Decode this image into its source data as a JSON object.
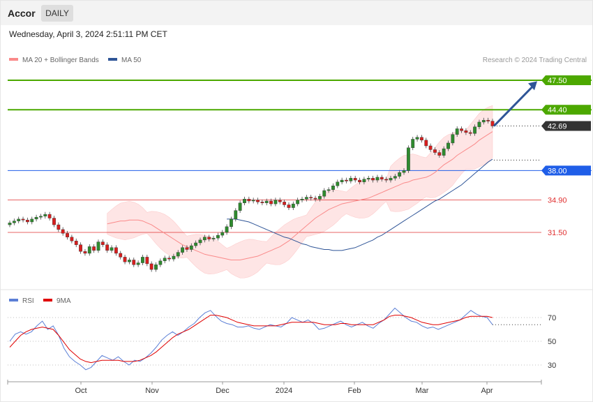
{
  "header": {
    "title": "Accor",
    "period": "DAILY",
    "datetime": "Wednesday, April 3, 2024 2:51:11 PM CET"
  },
  "legend": {
    "ma20": "MA 20 + Bollinger Bands",
    "ma50": "MA 50",
    "rsi": "RSI",
    "rsi_ma": "9MA"
  },
  "credit": "Research © 2024 Trading Central",
  "colors": {
    "bollinger": "#fa8a8a",
    "ma50": "#2f5597",
    "rsi": "#5b7fd6",
    "rsi_ma": "#e00000",
    "target": "#4ca800",
    "support": "#1f5ee8",
    "pivot": "#e03030",
    "price_tag": "#333333",
    "up": "#2e8b2e",
    "down": "#d81e1e"
  },
  "chart_data": [
    {
      "type": "line",
      "name_hint": "price-panel",
      "x_tick_labels": [
        "Oct",
        "Nov",
        "Dec",
        "2024",
        "Feb",
        "Mar",
        "Apr"
      ],
      "price_levels": [
        {
          "label": "47.50",
          "value": 47.5,
          "kind": "target"
        },
        {
          "label": "44.40",
          "value": 44.4,
          "kind": "target"
        },
        {
          "label": "42.69",
          "value": 42.69,
          "kind": "last"
        },
        {
          "label": "38.00",
          "value": 38.0,
          "kind": "support"
        },
        {
          "label": "34.90",
          "value": 34.9,
          "kind": "pivot"
        },
        {
          "label": "31.50",
          "value": 31.5,
          "kind": "pivot"
        }
      ],
      "ylim": [
        25.7,
        48.6
      ],
      "close": [
        32.5,
        32.7,
        32.9,
        32.8,
        32.6,
        32.9,
        33.1,
        33.2,
        33.4,
        33.0,
        32.3,
        31.8,
        31.4,
        31.0,
        30.6,
        30.2,
        29.5,
        29.3,
        30.0,
        29.6,
        30.5,
        30.2,
        29.6,
        29.9,
        29.3,
        28.9,
        28.4,
        28.6,
        28.1,
        28.3,
        28.9,
        28.2,
        27.6,
        28.1,
        28.5,
        28.8,
        28.7,
        29.0,
        29.4,
        29.9,
        29.7,
        30.1,
        30.4,
        30.7,
        31.0,
        30.8,
        30.9,
        31.2,
        31.5,
        32.1,
        32.9,
        33.8,
        34.6,
        35.0,
        34.8,
        34.9,
        34.7,
        34.6,
        34.8,
        34.5,
        34.9,
        34.7,
        34.4,
        34.1,
        34.5,
        34.9,
        35.0,
        35.2,
        35.1,
        35.0,
        35.3,
        35.9,
        36.0,
        36.4,
        36.8,
        37.0,
        36.9,
        37.2,
        37.0,
        36.8,
        37.1,
        37.2,
        37.0,
        37.3,
        37.1,
        37.0,
        37.2,
        37.4,
        37.8,
        38.0,
        40.4,
        41.3,
        41.5,
        41.2,
        40.6,
        40.2,
        39.9,
        39.6,
        40.3,
        40.9,
        41.8,
        42.4,
        42.2,
        42.0,
        41.9,
        42.6,
        43.1,
        43.3,
        43.2,
        42.69
      ],
      "ma20": [
        32.4,
        32.5,
        32.6,
        32.7,
        32.7,
        32.8,
        32.8,
        32.8,
        32.7,
        32.5,
        32.3,
        32.0,
        31.7,
        31.4,
        31.1,
        30.8,
        30.5,
        30.2,
        30.0,
        29.8,
        29.6,
        29.4,
        29.2,
        29.1,
        29.0,
        28.9,
        28.8,
        28.7,
        28.6,
        28.6,
        28.6,
        28.7,
        28.8,
        28.9,
        29.0,
        29.2,
        29.4,
        29.6,
        29.8,
        30.0,
        30.3,
        30.6,
        31.0,
        31.4,
        31.8,
        32.2,
        32.6,
        33.0,
        33.3,
        33.6,
        33.9,
        34.1,
        34.3,
        34.5,
        34.6,
        34.7,
        34.8,
        34.9,
        35.0,
        35.1,
        35.3,
        35.5,
        35.7,
        35.9,
        36.1,
        36.3,
        36.5,
        36.7,
        36.8,
        37.0,
        37.1,
        37.2,
        37.3,
        37.5,
        37.8,
        38.2,
        38.6,
        38.9,
        39.2,
        39.6,
        39.9,
        40.2,
        40.5,
        40.8,
        41.2,
        41.5,
        41.8,
        42.1
      ],
      "ma50": [
        32.9,
        32.9,
        32.9,
        32.8,
        32.7,
        32.6,
        32.4,
        32.2,
        32.0,
        31.8,
        31.6,
        31.4,
        31.2,
        31.0,
        30.9,
        30.7,
        30.5,
        30.3,
        30.2,
        30.0,
        29.9,
        29.8,
        29.7,
        29.7,
        29.6,
        29.6,
        29.6,
        29.7,
        29.8,
        29.9,
        30.1,
        30.3,
        30.5,
        30.7,
        31.0,
        31.2,
        31.5,
        31.8,
        32.1,
        32.4,
        32.7,
        33.0,
        33.3,
        33.6,
        33.9,
        34.2,
        34.5,
        34.8,
        35.0,
        35.3,
        35.6,
        35.9,
        36.2,
        36.5,
        36.9,
        37.3,
        37.7,
        38.1,
        38.5,
        38.9,
        39.2
      ]
    },
    {
      "type": "line",
      "name_hint": "rsi-panel",
      "x_tick_labels": [
        "Oct",
        "Nov",
        "Dec",
        "2024",
        "Feb",
        "Mar",
        "Apr"
      ],
      "y_tick_labels": [
        "70",
        "50",
        "30"
      ],
      "ylim": [
        20,
        80
      ],
      "series": [
        {
          "name": "RSI",
          "values": [
            50,
            56,
            58,
            56,
            58,
            63,
            67,
            60,
            63,
            55,
            44,
            37,
            33,
            30,
            26,
            28,
            33,
            38,
            36,
            34,
            37,
            33,
            30,
            34,
            33,
            36,
            40,
            45,
            51,
            55,
            58,
            55,
            58,
            62,
            65,
            70,
            74,
            76,
            71,
            67,
            65,
            64,
            62,
            62,
            63,
            61,
            60,
            62,
            64,
            63,
            62,
            65,
            70,
            68,
            66,
            68,
            65,
            60,
            61,
            63,
            65,
            67,
            64,
            62,
            64,
            66,
            63,
            61,
            65,
            68,
            73,
            78,
            74,
            70,
            67,
            66,
            63,
            61,
            62,
            60,
            62,
            64,
            66,
            68,
            72,
            76,
            73,
            71,
            70,
            64
          ]
        },
        {
          "name": "9MA",
          "values": [
            45,
            50,
            55,
            58,
            60,
            61,
            62,
            61,
            60,
            55,
            49,
            43,
            39,
            35,
            33,
            32,
            33,
            34,
            34,
            34,
            34,
            33,
            33,
            33,
            34,
            36,
            38,
            41,
            45,
            49,
            53,
            56,
            58,
            60,
            63,
            66,
            69,
            72,
            72,
            71,
            70,
            68,
            66,
            65,
            64,
            63,
            63,
            63,
            63,
            63,
            64,
            65,
            66,
            66,
            66,
            66,
            66,
            65,
            64,
            64,
            64,
            65,
            65,
            64,
            64,
            64,
            64,
            64,
            66,
            68,
            71,
            72,
            72,
            71,
            70,
            68,
            66,
            65,
            64,
            64,
            65,
            66,
            67,
            68,
            70,
            71,
            71,
            71,
            71,
            70
          ]
        }
      ]
    }
  ]
}
